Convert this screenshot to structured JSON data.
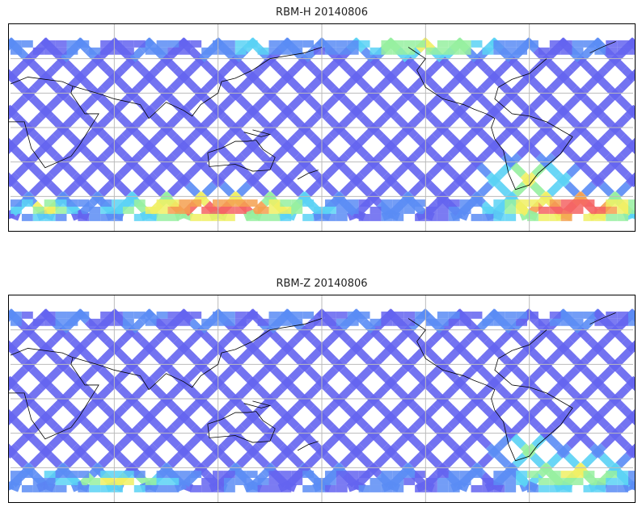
{
  "panels": [
    {
      "title": "RBM-H 20140806",
      "hotspots": [
        {
          "lon": 120,
          "lat": -70,
          "rlon": 60,
          "rlat": 12,
          "v": 0.95
        },
        {
          "lon": 325,
          "lat": -70,
          "rlon": 45,
          "rlat": 14,
          "v": 1.0
        },
        {
          "lon": 300,
          "lat": -45,
          "rlon": 25,
          "rlat": 20,
          "v": 0.6
        },
        {
          "lon": 20,
          "lat": -70,
          "rlon": 20,
          "rlat": 10,
          "v": 0.6
        },
        {
          "lon": 240,
          "lat": 70,
          "rlon": 50,
          "rlat": 8,
          "v": 0.65
        },
        {
          "lon": 140,
          "lat": 70,
          "rlon": 20,
          "rlat": 8,
          "v": 0.4
        }
      ]
    },
    {
      "title": "RBM-Z 20140806",
      "hotspots": [
        {
          "lon": 325,
          "lat": -65,
          "rlon": 40,
          "rlat": 18,
          "v": 0.6
        },
        {
          "lon": 300,
          "lat": -45,
          "rlon": 20,
          "rlat": 15,
          "v": 0.55
        },
        {
          "lon": 60,
          "lat": -72,
          "rlon": 40,
          "rlat": 8,
          "v": 0.6
        },
        {
          "lon": 20,
          "lat": -65,
          "rlon": 15,
          "rlat": 10,
          "v": 0.35
        }
      ]
    }
  ],
  "colormap": [
    "#6464f0",
    "#5a8cf5",
    "#5ad2f5",
    "#96f0a0",
    "#f0f064",
    "#f5a050",
    "#f56464"
  ],
  "map": {
    "lon_range": [
      0,
      360
    ],
    "lat_range": [
      -90,
      90
    ],
    "data_lat_range": [
      -78,
      76
    ],
    "grid_lon": [
      60,
      120,
      180,
      240,
      300
    ],
    "grid_lat": [
      -60,
      -30,
      0,
      30,
      60
    ]
  }
}
